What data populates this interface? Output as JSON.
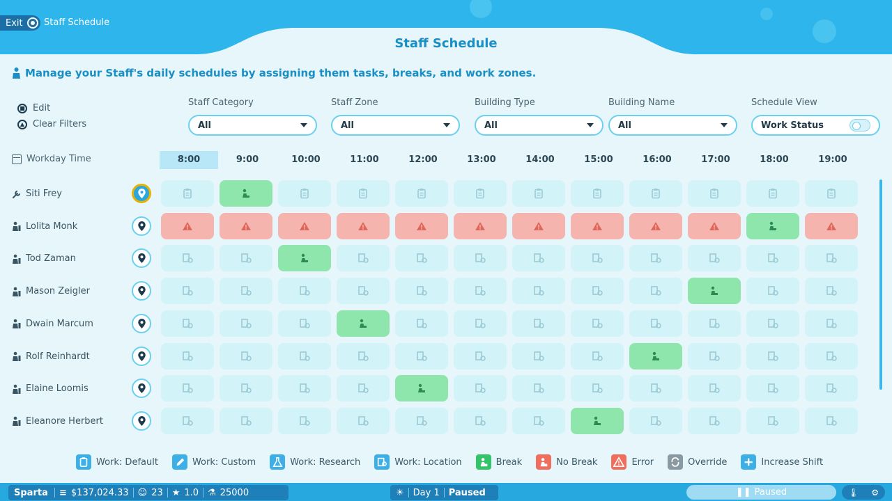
{
  "header": {
    "exit_label": "Exit",
    "breadcrumb": "Staff Schedule",
    "title": "Staff Schedule",
    "subtitle": "Manage your Staff's daily schedules by assigning them tasks, breaks, and work zones."
  },
  "controls": {
    "edit_label": "Edit",
    "clear_filters_label": "Clear Filters"
  },
  "filters": [
    {
      "label": "Staff Category",
      "value": "All"
    },
    {
      "label": "Staff Zone",
      "value": "All"
    },
    {
      "label": "Building Type",
      "value": "All"
    },
    {
      "label": "Building Name",
      "value": "All"
    }
  ],
  "schedule_view": {
    "label": "Schedule View",
    "value": "Work Status"
  },
  "timeline": {
    "label": "Workday Time",
    "hours": [
      "8:00",
      "9:00",
      "10:00",
      "11:00",
      "12:00",
      "13:00",
      "14:00",
      "15:00",
      "16:00",
      "17:00",
      "18:00",
      "19:00"
    ],
    "active_hour": "8:00"
  },
  "staff": [
    {
      "name": "Siti Frey",
      "icon": "wrench-icon",
      "selected": true,
      "cells": [
        "default",
        "break",
        "default",
        "default",
        "default",
        "default",
        "default",
        "default",
        "default",
        "default",
        "default",
        "default"
      ]
    },
    {
      "name": "Lolita Monk",
      "icon": "scientist-icon",
      "cells": [
        "error",
        "error",
        "error",
        "error",
        "error",
        "error",
        "error",
        "error",
        "error",
        "error",
        "break",
        "error"
      ]
    },
    {
      "name": "Tod Zaman",
      "icon": "scientist-icon",
      "cells": [
        "location",
        "location",
        "break",
        "location",
        "location",
        "location",
        "location",
        "location",
        "location",
        "location",
        "location",
        "location"
      ]
    },
    {
      "name": "Mason Zeigler",
      "icon": "scientist-icon",
      "cells": [
        "location",
        "location",
        "location",
        "location",
        "location",
        "location",
        "location",
        "location",
        "location",
        "break",
        "location",
        "location"
      ]
    },
    {
      "name": "Dwain Marcum",
      "icon": "janitor-icon",
      "cells": [
        "location",
        "location",
        "location",
        "break",
        "location",
        "location",
        "location",
        "location",
        "location",
        "location",
        "location",
        "location"
      ]
    },
    {
      "name": "Rolf Reinhardt",
      "icon": "janitor-icon",
      "cells": [
        "location",
        "location",
        "location",
        "location",
        "location",
        "location",
        "location",
        "location",
        "break",
        "location",
        "location",
        "location"
      ]
    },
    {
      "name": "Elaine Loomis",
      "icon": "janitor-icon",
      "cells": [
        "location",
        "location",
        "location",
        "location",
        "break",
        "location",
        "location",
        "location",
        "location",
        "location",
        "location",
        "location"
      ]
    },
    {
      "name": "Eleanore Herbert",
      "icon": "janitor-icon",
      "cells": [
        "location",
        "location",
        "location",
        "location",
        "location",
        "location",
        "location",
        "break",
        "location",
        "location",
        "location",
        "location"
      ]
    }
  ],
  "legend": [
    {
      "key": "default",
      "label": "Work: Default",
      "color": "#3cb0e6"
    },
    {
      "key": "custom",
      "label": "Work: Custom",
      "color": "#3cb0e6"
    },
    {
      "key": "research",
      "label": "Work: Research",
      "color": "#3cb0e6"
    },
    {
      "key": "location",
      "label": "Work: Location",
      "color": "#3cb0e6"
    },
    {
      "key": "break",
      "label": "Break",
      "color": "#33c46a"
    },
    {
      "key": "nobreak",
      "label": "No Break",
      "color": "#f06e5e"
    },
    {
      "key": "error",
      "label": "Error",
      "color": "#f06e5e"
    },
    {
      "key": "override",
      "label": "Override",
      "color": "#8a9aa2"
    },
    {
      "key": "increase",
      "label": "Increase Shift",
      "color": "#3cb0e6"
    }
  ],
  "status_bar": {
    "park_name": "Sparta",
    "money": "$137,024.33",
    "guests": "23",
    "rating": "1.0",
    "research": "25000",
    "day": "Day 1",
    "state": "Paused",
    "speed_label": "Paused"
  },
  "colors": {
    "accent": "#1a8fc6",
    "cell_default": "#d2f4f8",
    "cell_break": "#8ee6ac",
    "cell_error": "#f6b4ae"
  }
}
